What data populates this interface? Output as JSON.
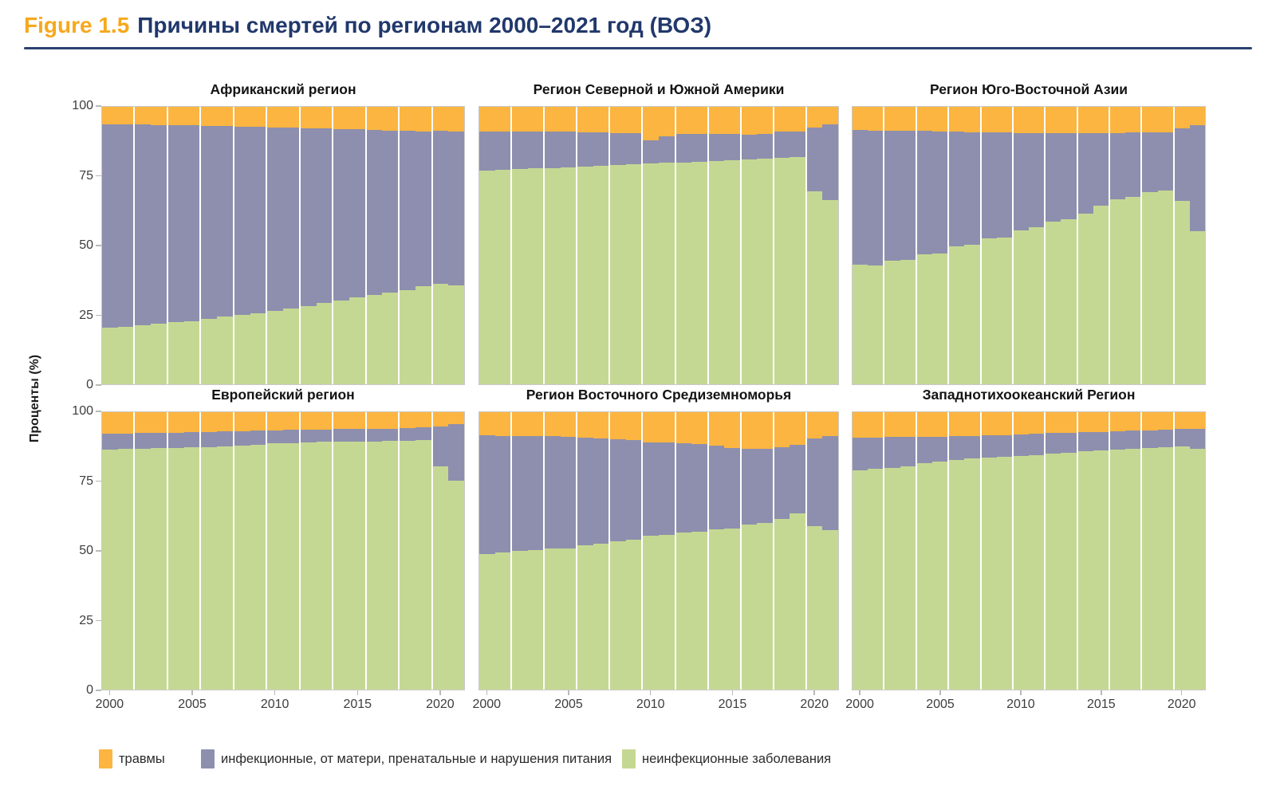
{
  "header": {
    "figure_label": "Figure 1.5",
    "title": "Причины смертей по регионам 2000–2021 год (ВОЗ)"
  },
  "colors": {
    "injuries": "#fbb540",
    "infectious": "#8e8fae",
    "ncd": "#c5d893",
    "figure_label": "#f6a81c",
    "title": "#21386b",
    "rule": "#2c4170"
  },
  "y_axis": {
    "label": "Проценты (%)",
    "ticks": [
      0,
      25,
      50,
      75,
      100
    ]
  },
  "x_axis": {
    "ticks": [
      2000,
      2005,
      2010,
      2015,
      2020
    ]
  },
  "legend": {
    "items": [
      {
        "key": "injuries",
        "label": "травмы"
      },
      {
        "key": "infectious",
        "label": "инфекционные, от матери, пренатальные и нарушения питания"
      },
      {
        "key": "ncd",
        "label": "неинфекционные заболевания"
      }
    ]
  },
  "chart_data": {
    "type": "bar",
    "stacked": true,
    "grid": false,
    "ylim": [
      0,
      100
    ],
    "ylabel": "Проценты (%)",
    "years": [
      2000,
      2001,
      2002,
      2003,
      2004,
      2005,
      2006,
      2007,
      2008,
      2009,
      2010,
      2011,
      2012,
      2013,
      2014,
      2015,
      2016,
      2017,
      2018,
      2019,
      2020,
      2021
    ],
    "series_names": {
      "ncd": "неинфекционные заболевания",
      "infectious": "инфекционные, от матери, пренатальные и нарушения питания",
      "injuries": "травмы"
    },
    "panels": [
      {
        "title": "Африканский регион",
        "ncd": [
          20.5,
          20.8,
          21.3,
          21.8,
          22.3,
          22.8,
          23.5,
          24.3,
          25.0,
          25.6,
          26.5,
          27.4,
          28.3,
          29.2,
          30.2,
          31.2,
          32.2,
          33.0,
          34.0,
          35.3,
          36.2,
          35.6
        ],
        "infectious": [
          73.1,
          72.8,
          72.3,
          71.7,
          71.2,
          70.5,
          69.7,
          68.7,
          67.9,
          67.1,
          66.1,
          65.0,
          64.0,
          62.9,
          61.8,
          60.7,
          59.5,
          58.5,
          57.3,
          55.9,
          55.3,
          55.4
        ],
        "injuries": [
          6.4,
          6.4,
          6.4,
          6.5,
          6.5,
          6.7,
          6.8,
          7.0,
          7.1,
          7.3,
          7.4,
          7.6,
          7.7,
          7.9,
          8.0,
          8.1,
          8.3,
          8.5,
          8.7,
          8.8,
          8.5,
          9.0
        ]
      },
      {
        "title": "Регион Северной и Южной Америки",
        "ncd": [
          77.0,
          77.2,
          77.5,
          77.8,
          78.0,
          78.3,
          78.5,
          78.8,
          79.0,
          79.2,
          79.5,
          79.8,
          80.0,
          80.3,
          80.6,
          80.8,
          81.0,
          81.3,
          81.5,
          81.8,
          69.5,
          66.5
        ],
        "infectious": [
          14.0,
          13.8,
          13.5,
          13.3,
          13.0,
          12.7,
          12.3,
          12.0,
          11.5,
          11.2,
          8.5,
          9.7,
          10.3,
          10.0,
          9.6,
          9.4,
          9.0,
          8.9,
          9.5,
          9.4,
          23.0,
          27.3
        ],
        "injuries": [
          9.0,
          9.0,
          9.0,
          8.9,
          9.0,
          9.0,
          9.2,
          9.2,
          9.5,
          9.6,
          12.0,
          10.5,
          9.7,
          9.7,
          9.8,
          9.8,
          10.0,
          9.8,
          9.0,
          8.8,
          7.5,
          6.2
        ]
      },
      {
        "title": "Регион Юго-Восточной Азии",
        "ncd": [
          43.0,
          42.7,
          44.5,
          44.9,
          46.9,
          47.2,
          49.8,
          50.2,
          52.5,
          53.0,
          55.5,
          56.5,
          58.5,
          59.5,
          61.5,
          64.3,
          66.8,
          67.5,
          69.2,
          69.9,
          66.0,
          55.1
        ],
        "infectious": [
          48.7,
          48.8,
          47.0,
          46.5,
          44.4,
          44.0,
          41.2,
          40.7,
          38.3,
          37.7,
          35.1,
          34.0,
          32.0,
          30.9,
          29.0,
          26.3,
          23.8,
          23.2,
          21.6,
          20.9,
          26.2,
          38.3
        ],
        "injuries": [
          8.3,
          8.5,
          8.5,
          8.6,
          8.7,
          8.8,
          9.0,
          9.1,
          9.2,
          9.3,
          9.4,
          9.5,
          9.5,
          9.6,
          9.5,
          9.4,
          9.4,
          9.3,
          9.2,
          9.2,
          7.8,
          6.6
        ]
      },
      {
        "title": "Европейский регион",
        "ncd": [
          86.5,
          86.8,
          86.9,
          87.0,
          87.1,
          87.3,
          87.3,
          87.5,
          87.8,
          88.2,
          88.7,
          88.9,
          89.1,
          89.3,
          89.4,
          89.3,
          89.5,
          89.6,
          89.7,
          89.8,
          80.5,
          75.3
        ],
        "infectious": [
          5.8,
          5.5,
          5.5,
          5.4,
          5.4,
          5.5,
          5.6,
          5.5,
          5.4,
          5.1,
          4.8,
          4.7,
          4.6,
          4.5,
          4.5,
          4.6,
          4.5,
          4.5,
          4.5,
          4.7,
          14.3,
          20.5
        ],
        "injuries": [
          7.7,
          7.7,
          7.6,
          7.6,
          7.5,
          7.2,
          7.1,
          7.0,
          6.8,
          6.7,
          6.5,
          6.4,
          6.3,
          6.2,
          6.1,
          6.1,
          6.0,
          5.9,
          5.8,
          5.5,
          5.2,
          4.2
        ]
      },
      {
        "title": "Регион Восточного Средиземноморья",
        "ncd": [
          48.8,
          49.3,
          50.0,
          50.3,
          50.8,
          51.0,
          52.0,
          52.5,
          53.5,
          54.0,
          55.5,
          55.8,
          56.5,
          57.0,
          57.8,
          58.0,
          59.5,
          60.0,
          61.5,
          63.4,
          59.0,
          57.5
        ],
        "infectious": [
          42.9,
          42.2,
          41.5,
          41.1,
          40.5,
          40.2,
          38.8,
          38.0,
          36.7,
          36.0,
          33.5,
          33.4,
          32.3,
          31.5,
          30.0,
          29.1,
          27.3,
          26.9,
          25.8,
          24.7,
          31.5,
          33.8
        ],
        "injuries": [
          8.3,
          8.5,
          8.5,
          8.6,
          8.7,
          8.8,
          9.2,
          9.5,
          9.8,
          10.0,
          11.0,
          10.8,
          11.2,
          11.5,
          12.2,
          12.9,
          13.2,
          13.1,
          12.7,
          11.9,
          9.5,
          8.7
        ]
      },
      {
        "title": "Западнотихоокеанский Регион",
        "ncd": [
          79.0,
          79.5,
          80.0,
          80.5,
          81.5,
          82.3,
          82.8,
          83.2,
          83.6,
          84.0,
          84.2,
          84.6,
          85.0,
          85.4,
          85.8,
          86.1,
          86.4,
          86.7,
          87.0,
          87.3,
          87.6,
          86.9
        ],
        "infectious": [
          11.8,
          11.4,
          11.0,
          10.6,
          9.7,
          8.9,
          8.6,
          8.3,
          8.1,
          7.8,
          7.8,
          7.6,
          7.4,
          7.2,
          7.0,
          6.8,
          6.7,
          6.6,
          6.5,
          6.3,
          6.5,
          7.0
        ],
        "injuries": [
          9.2,
          9.1,
          9.0,
          8.9,
          8.8,
          8.8,
          8.6,
          8.5,
          8.3,
          8.2,
          8.0,
          7.8,
          7.6,
          7.4,
          7.2,
          7.1,
          6.9,
          6.7,
          6.5,
          6.4,
          5.9,
          6.1
        ]
      }
    ]
  }
}
